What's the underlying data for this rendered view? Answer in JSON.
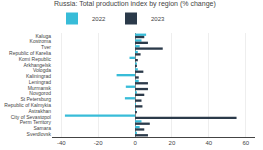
{
  "chart_data": {
    "type": "bar",
    "orientation": "horizontal",
    "title": "Russia: Total production index by region (% change)",
    "categories": [
      "Kaluga",
      "Kostroma",
      "Tver",
      "Republic of Karelia",
      "Komi Republic",
      "Arkhangelsk",
      "Vologda",
      "Kaliningrad",
      "Leningrad",
      "Murmansk",
      "Novgorod",
      "St Petersburg",
      "Republic of Kalmykia",
      "Astrakhan",
      "City of Sevastopol",
      "Perm Territory",
      "Samara",
      "Sverdlovsk"
    ],
    "series": [
      {
        "name": "2022",
        "color": "#38bcd8",
        "values": [
          6.0,
          3.5,
          2.5,
          1.5,
          -3.0,
          1.0,
          1.5,
          -10.0,
          2.0,
          -5.0,
          1.0,
          -5.5,
          0.5,
          0.5,
          -38.0,
          3.5,
          2.5,
          1.0
        ]
      },
      {
        "name": "2023",
        "color": "#2b3a4a",
        "values": [
          5.0,
          7.0,
          15.0,
          3.0,
          1.5,
          1.0,
          4.5,
          2.0,
          7.0,
          7.0,
          5.0,
          3.5,
          4.0,
          1.0,
          55.0,
          8.0,
          5.0,
          7.0
        ]
      }
    ],
    "xlim": [
      -45,
      65
    ],
    "xticks": [
      -40,
      -20,
      0,
      20,
      40,
      60
    ],
    "grid": true,
    "legend": "top left"
  }
}
